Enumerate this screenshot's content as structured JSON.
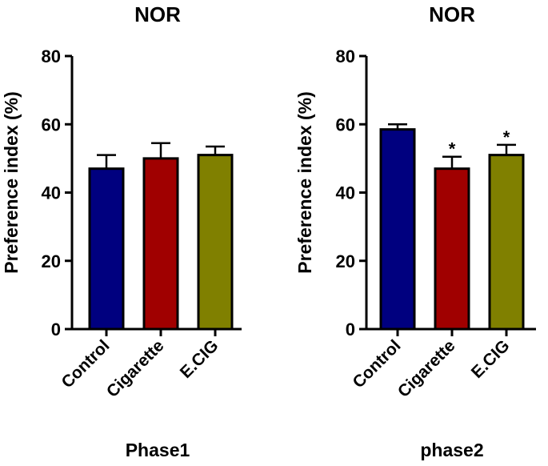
{
  "chart_data": [
    {
      "type": "bar",
      "title": "NOR",
      "ylabel": "Preference index (%)",
      "xlabel": "Phase1",
      "ylim": [
        0,
        80
      ],
      "yticks": [
        "0",
        "20",
        "40",
        "60",
        "80"
      ],
      "categories": [
        "Control",
        "Cigarette",
        "E.CIG"
      ],
      "values": [
        47,
        50,
        51
      ],
      "errors": [
        4,
        4.5,
        2.5
      ],
      "significance": [
        "",
        "",
        ""
      ],
      "colors": [
        "#00007f",
        "#a00000",
        "#808000"
      ],
      "grid": false,
      "legend": "none"
    },
    {
      "type": "bar",
      "title": "NOR",
      "ylabel": "Preference index (%)",
      "xlabel": "phase2",
      "ylim": [
        0,
        80
      ],
      "yticks": [
        "0",
        "20",
        "40",
        "60",
        "80"
      ],
      "categories": [
        "Control",
        "Cigarette",
        "E.CIG"
      ],
      "values": [
        58.5,
        47,
        51
      ],
      "errors": [
        1.5,
        3.5,
        3
      ],
      "significance": [
        "",
        "*",
        "*"
      ],
      "colors": [
        "#00007f",
        "#a00000",
        "#808000"
      ],
      "grid": false,
      "legend": "none"
    }
  ]
}
